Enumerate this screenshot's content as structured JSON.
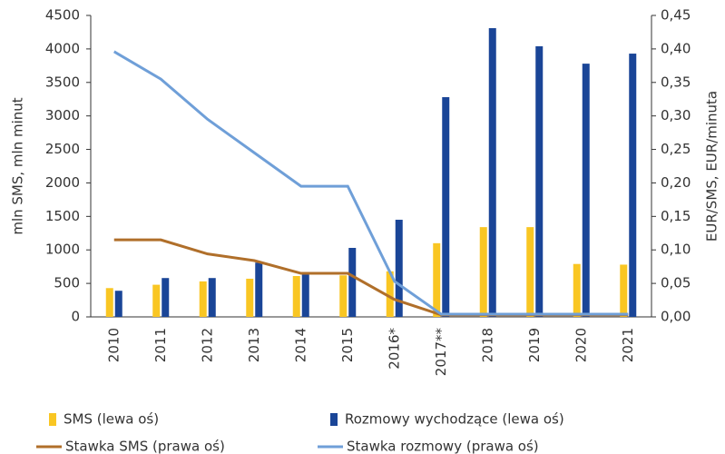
{
  "chart_data": {
    "type": "bar",
    "categories": [
      "2010",
      "2011",
      "2012",
      "2013",
      "2014",
      "2015",
      "2016*",
      "2017**",
      "2018",
      "2019",
      "2020",
      "2021"
    ],
    "ylabel": "mln SMS, mln minut",
    "y2label": "EUR/SMS, EUR/minuta",
    "ylim": [
      0,
      4500
    ],
    "yticks": [
      0,
      500,
      1000,
      1500,
      2000,
      2500,
      3000,
      3500,
      4000,
      4500
    ],
    "y2lim": [
      0,
      0.45
    ],
    "y2ticks": [
      {
        "value": 0,
        "label": "0,00"
      },
      {
        "value": 0.05,
        "label": "0,05"
      },
      {
        "value": 0.1,
        "label": "0,10"
      },
      {
        "value": 0.15,
        "label": "0,15"
      },
      {
        "value": 0.2,
        "label": "0,20"
      },
      {
        "value": 0.25,
        "label": "0,25"
      },
      {
        "value": 0.3,
        "label": "0,30"
      },
      {
        "value": 0.35,
        "label": "0,35"
      },
      {
        "value": 0.4,
        "label": "0,40"
      },
      {
        "value": 0.45,
        "label": "0,45"
      }
    ],
    "grid": false,
    "series": [
      {
        "name": "SMS (lewa oś)",
        "color": "#f9c623",
        "type": "bar",
        "values": [
          430,
          480,
          530,
          570,
          610,
          620,
          680,
          1100,
          1340,
          1340,
          790,
          780
        ]
      },
      {
        "name": "Rozmowy wychodzące (lewa oś)",
        "color": "#1a4597",
        "type": "bar",
        "values": [
          390,
          580,
          580,
          810,
          650,
          1030,
          1450,
          3280,
          4310,
          4040,
          3780,
          3930
        ]
      },
      {
        "name": "Stawka SMS (prawa oś)",
        "color": "#b06f2a",
        "type": "line",
        "axis": "y2",
        "values": [
          0.115,
          0.115,
          0.094,
          0.084,
          0.065,
          0.065,
          0.026,
          0.003,
          0.003,
          0.003,
          0.003,
          0.003
        ]
      },
      {
        "name": "Stawka rozmowy (prawa oś)",
        "color": "#6f9fd8",
        "type": "line",
        "axis": "y2",
        "values": [
          0.396,
          0.355,
          0.295,
          0.245,
          0.195,
          0.195,
          0.053,
          0.004,
          0.004,
          0.004,
          0.004,
          0.004
        ]
      }
    ]
  }
}
